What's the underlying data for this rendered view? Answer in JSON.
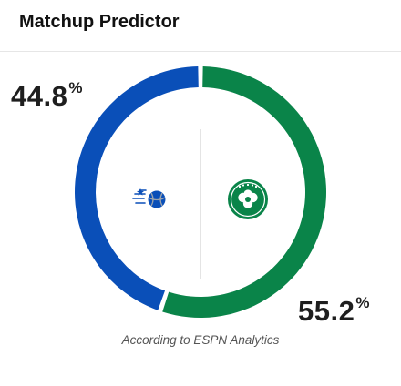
{
  "widget": {
    "title": "Matchup Predictor",
    "source_note": "According to ESPN Analytics"
  },
  "teams": [
    {
      "side": "left",
      "logo_icon": "orlando-magic-logo-icon",
      "win_probability": 44.8,
      "percent_value": "44.8",
      "percent_symbol": "%",
      "color": "#0a4fb8"
    },
    {
      "side": "right",
      "logo_icon": "boston-celtics-logo-icon",
      "win_probability": 55.2,
      "percent_value": "55.2",
      "percent_symbol": "%",
      "color": "#0a8449"
    }
  ],
  "chart_data": {
    "type": "pie",
    "categories": [
      "left",
      "right"
    ],
    "values": [
      44.8,
      55.2
    ],
    "colors": [
      "#0a4fb8",
      "#0a8449"
    ]
  }
}
